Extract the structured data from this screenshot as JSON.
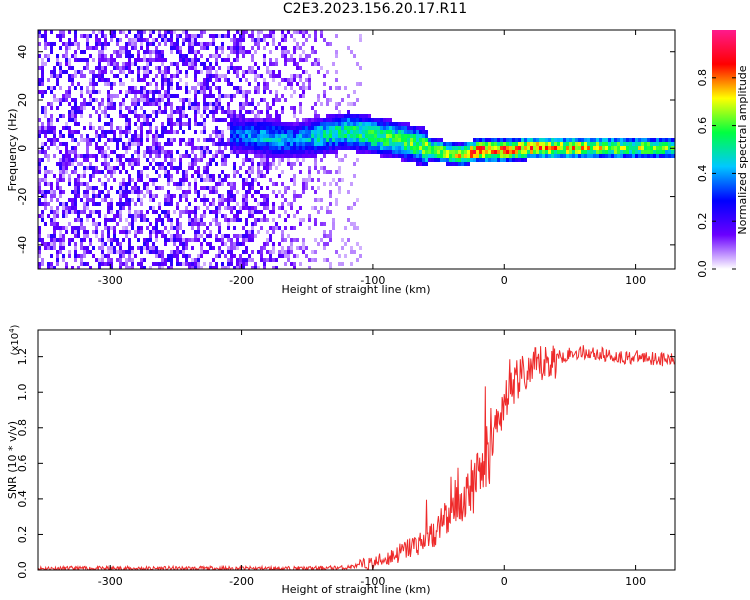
{
  "title": "C2E3.2023.156.20.17.R11",
  "colors": {
    "snr_line": "#ee2a2a",
    "axis": "#000000",
    "background": "#ffffff"
  },
  "chart_data": [
    {
      "type": "heatmap",
      "xlabel": "Height of straight line (km)",
      "ylabel": "Frequency (Hz)",
      "xlim": [
        -355,
        130
      ],
      "ylim": [
        -50,
        49
      ],
      "x_ticks": [
        -300,
        -200,
        -100,
        0,
        100
      ],
      "y_ticks": [
        -40,
        -20,
        0,
        20,
        40
      ],
      "x_tick_labels": [
        "-300",
        "-200",
        "-100",
        "0",
        "100"
      ],
      "y_tick_labels": [
        "-40",
        "-20",
        "0",
        "20",
        "40"
      ],
      "colorbar": {
        "label": "Normalized spectral amplitude",
        "range": [
          0.0,
          1.0
        ],
        "ticks": [
          0.0,
          0.2,
          0.4,
          0.6,
          0.8
        ],
        "tick_labels": [
          "0.0",
          "0.2",
          "0.4",
          "0.6",
          "0.8"
        ],
        "colors": [
          "#ffffff",
          "#6a00ff",
          "#0000ff",
          "#00c8ff",
          "#00ff40",
          "#ffff00",
          "#ff0000",
          "#ff1a8c"
        ]
      },
      "ridge": {
        "x": [
          -210,
          -180,
          -160,
          -140,
          -120,
          -100,
          -80,
          -60,
          -45,
          -35,
          -20,
          0,
          20,
          50,
          80,
          100,
          130
        ],
        "frequency": [
          7,
          5,
          4,
          6,
          8,
          6,
          4,
          1,
          -1,
          -2,
          0,
          0,
          1,
          1,
          1,
          1,
          1
        ],
        "amplitude": [
          0.35,
          0.45,
          0.4,
          0.5,
          0.55,
          0.6,
          0.6,
          0.65,
          0.7,
          0.75,
          0.9,
          0.9,
          0.8,
          0.75,
          0.7,
          0.65,
          0.6
        ]
      },
      "noise_region": {
        "x_range": [
          -355,
          -110
        ],
        "frequency_range": [
          -50,
          49
        ],
        "amplitude": 0.2
      }
    },
    {
      "type": "line",
      "xlabel": "Height of straight line (km)",
      "ylabel": "SNR (10 * v/v)",
      "y_multiplier": "(x10",
      "y_multiplier_exponent": "4",
      "y_multiplier_close": ")",
      "xlim": [
        -355,
        130
      ],
      "ylim": [
        0,
        1.35
      ],
      "x_ticks": [
        -300,
        -200,
        -100,
        0,
        100
      ],
      "y_ticks": [
        0.0,
        0.2,
        0.4,
        0.6,
        0.8,
        1.0,
        1.2
      ],
      "x_tick_labels": [
        "-300",
        "-200",
        "-100",
        "0",
        "100"
      ],
      "y_tick_labels": [
        "0.0",
        "0.2",
        "0.4",
        "0.6",
        "0.8",
        "1.0",
        "1.2"
      ],
      "series": [
        {
          "x": [
            -355,
            -300,
            -250,
            -200,
            -150,
            -120,
            -100,
            -80,
            -60,
            -50,
            -40,
            -30,
            -20,
            -10,
            0,
            10,
            20,
            30,
            40,
            50,
            60,
            70,
            80,
            90,
            100,
            110,
            120,
            130
          ],
          "y": [
            0.01,
            0.01,
            0.01,
            0.01,
            0.01,
            0.015,
            0.04,
            0.1,
            0.18,
            0.25,
            0.32,
            0.42,
            0.55,
            0.75,
            0.95,
            1.08,
            1.13,
            1.17,
            1.2,
            1.22,
            1.23,
            1.22,
            1.21,
            1.2,
            1.2,
            1.2,
            1.19,
            1.18
          ]
        }
      ]
    }
  ]
}
